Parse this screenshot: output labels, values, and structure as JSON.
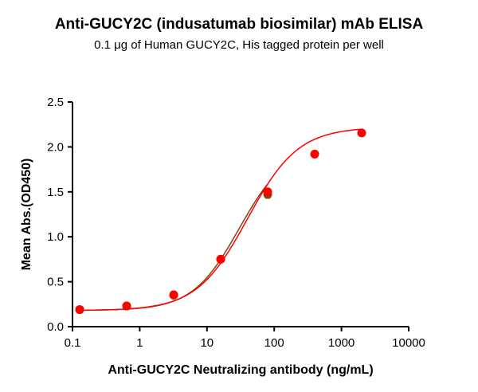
{
  "chart_data": {
    "type": "scatter",
    "title": "Anti-GUCY2C (indusatumab biosimilar) mAb ELISA",
    "subtitle": "0.1 μg of Human GUCY2C, His tagged protein per well",
    "xlabel": "Anti-GUCY2C Neutralizing antibody (ng/mL)",
    "ylabel": "Mean Abs.(OD450)",
    "xscale": "log",
    "xlim": [
      0.1,
      10000
    ],
    "ylim": [
      0,
      2.5
    ],
    "xticks": [
      "0.1",
      "1",
      "10",
      "100",
      "1000",
      "10000"
    ],
    "xtick_values": [
      0.1,
      1,
      10,
      100,
      1000,
      10000
    ],
    "yticks": [
      "0.0",
      "0.5",
      "1.0",
      "1.5",
      "2.0",
      "2.5"
    ],
    "ytick_values": [
      0,
      0.5,
      1.0,
      1.5,
      2.0,
      2.5
    ],
    "grid": false,
    "series": [
      {
        "color": "#7a4a10",
        "marker": "circle",
        "x": [
          0.128,
          0.64,
          3.2,
          16,
          80
        ],
        "y": [
          0.19,
          0.23,
          0.35,
          0.75,
          1.47
        ],
        "fit": "sigmoidal"
      },
      {
        "color": "#ff0000",
        "marker": "circle",
        "x": [
          0.128,
          0.64,
          3.2,
          16,
          80,
          400,
          2000
        ],
        "y": [
          0.19,
          0.23,
          0.355,
          0.75,
          1.5,
          1.92,
          2.155
        ],
        "fit": "sigmoidal"
      }
    ]
  }
}
